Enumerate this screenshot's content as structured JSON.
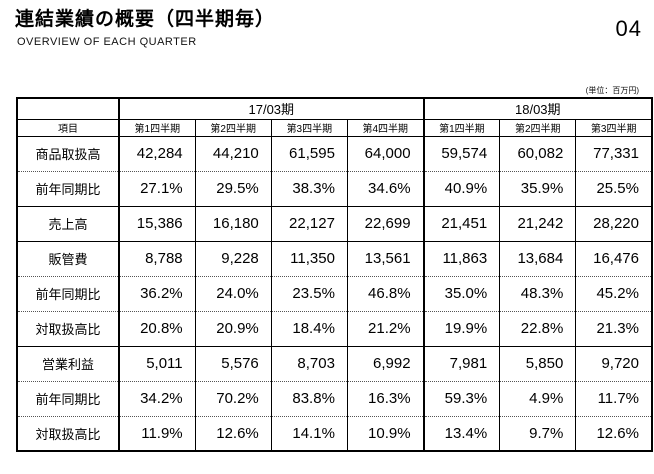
{
  "page": {
    "title": "連結業績の概要（四半期毎）",
    "subtitle": "OVERVIEW OF EACH QUARTER",
    "page_number": "04",
    "unit_note": "(単位：百万円)"
  },
  "table": {
    "corner_label": "項目",
    "year_groups": [
      {
        "label": "17/03期",
        "colspan": 4
      },
      {
        "label": "18/03期",
        "colspan": 3
      }
    ],
    "quarter_headers": [
      "第1四半期",
      "第2四半期",
      "第3四半期",
      "第4四半期",
      "第1四半期",
      "第2四半期",
      "第3四半期"
    ],
    "rows": [
      {
        "label": "商品取扱高",
        "values": [
          "42,284",
          "44,210",
          "61,595",
          "64,000",
          "59,574",
          "60,082",
          "77,331"
        ],
        "sep": "dotted"
      },
      {
        "label": "前年同期比",
        "values": [
          "27.1%",
          "29.5%",
          "38.3%",
          "34.6%",
          "40.9%",
          "35.9%",
          "25.5%"
        ],
        "sep": "solid"
      },
      {
        "label": "売上高",
        "values": [
          "15,386",
          "16,180",
          "22,127",
          "22,699",
          "21,451",
          "21,242",
          "28,220"
        ],
        "sep": "solid"
      },
      {
        "label": "販管費",
        "values": [
          "8,788",
          "9,228",
          "11,350",
          "13,561",
          "11,863",
          "13,684",
          "16,476"
        ],
        "sep": "dotted"
      },
      {
        "label": "前年同期比",
        "values": [
          "36.2%",
          "24.0%",
          "23.5%",
          "46.8%",
          "35.0%",
          "48.3%",
          "45.2%"
        ],
        "sep": "dotted"
      },
      {
        "label": "対取扱高比",
        "values": [
          "20.8%",
          "20.9%",
          "18.4%",
          "21.2%",
          "19.9%",
          "22.8%",
          "21.3%"
        ],
        "sep": "solid"
      },
      {
        "label": "営業利益",
        "values": [
          "5,011",
          "5,576",
          "8,703",
          "6,992",
          "7,981",
          "5,850",
          "9,720"
        ],
        "sep": "dotted"
      },
      {
        "label": "前年同期比",
        "values": [
          "34.2%",
          "70.2%",
          "83.8%",
          "16.3%",
          "59.3%",
          "4.9%",
          "11.7%"
        ],
        "sep": "dotted"
      },
      {
        "label": "対取扱高比",
        "values": [
          "11.9%",
          "12.6%",
          "14.1%",
          "10.9%",
          "13.4%",
          "9.7%",
          "12.6%"
        ],
        "sep": "none"
      }
    ]
  }
}
